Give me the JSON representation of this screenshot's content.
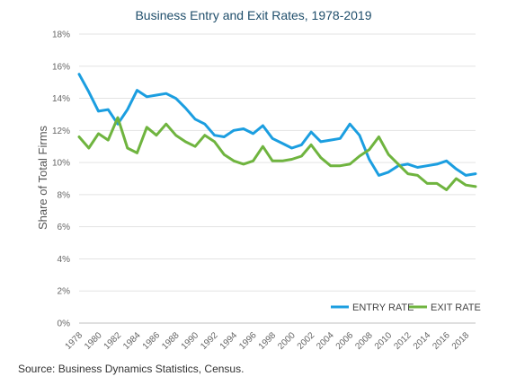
{
  "chart_data": {
    "type": "line",
    "title": "Business Entry and Exit Rates, 1978-2019",
    "xlabel": "",
    "ylabel": "Share of Total Firms",
    "x": [
      1978,
      1979,
      1980,
      1981,
      1982,
      1983,
      1984,
      1985,
      1986,
      1987,
      1988,
      1989,
      1990,
      1991,
      1992,
      1993,
      1994,
      1995,
      1996,
      1997,
      1998,
      1999,
      2000,
      2001,
      2002,
      2003,
      2004,
      2005,
      2006,
      2007,
      2008,
      2009,
      2010,
      2011,
      2012,
      2013,
      2014,
      2015,
      2016,
      2017,
      2018,
      2019
    ],
    "xlim": [
      1978,
      2019
    ],
    "ylim": [
      0,
      18
    ],
    "y_ticks": [
      "0%",
      "2%",
      "4%",
      "6%",
      "8%",
      "10%",
      "12%",
      "14%",
      "16%",
      "18%"
    ],
    "x_ticks": [
      "1978",
      "1980",
      "1982",
      "1984",
      "1986",
      "1988",
      "1990",
      "1992",
      "1994",
      "1996",
      "1998",
      "2000",
      "2002",
      "2004",
      "2006",
      "2008",
      "2010",
      "2012",
      "2014",
      "2016",
      "2018"
    ],
    "grid": true,
    "legend_position": "bottom-right",
    "series": [
      {
        "name": "ENTRY RATE",
        "color": "#1b9ee0",
        "values": [
          15.5,
          14.4,
          13.2,
          13.3,
          12.4,
          13.3,
          14.5,
          14.1,
          14.2,
          14.3,
          14.0,
          13.4,
          12.7,
          12.4,
          11.7,
          11.6,
          12.0,
          12.1,
          11.8,
          12.3,
          11.5,
          11.2,
          10.9,
          11.1,
          11.9,
          11.3,
          11.4,
          11.5,
          12.4,
          11.7,
          10.2,
          9.2,
          9.4,
          9.8,
          9.9,
          9.7,
          9.8,
          9.9,
          10.1,
          9.6,
          9.2,
          9.3
        ]
      },
      {
        "name": "EXIT RATE",
        "color": "#6fb43f",
        "values": [
          11.6,
          10.9,
          11.8,
          11.4,
          12.8,
          10.9,
          10.6,
          12.2,
          11.7,
          12.4,
          11.7,
          11.3,
          11.0,
          11.7,
          11.3,
          10.5,
          10.1,
          9.9,
          10.1,
          11.0,
          10.1,
          10.1,
          10.2,
          10.4,
          11.1,
          10.3,
          9.8,
          9.8,
          9.9,
          10.4,
          10.8,
          11.6,
          10.5,
          9.9,
          9.3,
          9.2,
          8.7,
          8.7,
          8.3,
          9.0,
          8.6,
          8.5
        ]
      }
    ]
  },
  "source_note": "Source: Business Dynamics Statistics, Census."
}
